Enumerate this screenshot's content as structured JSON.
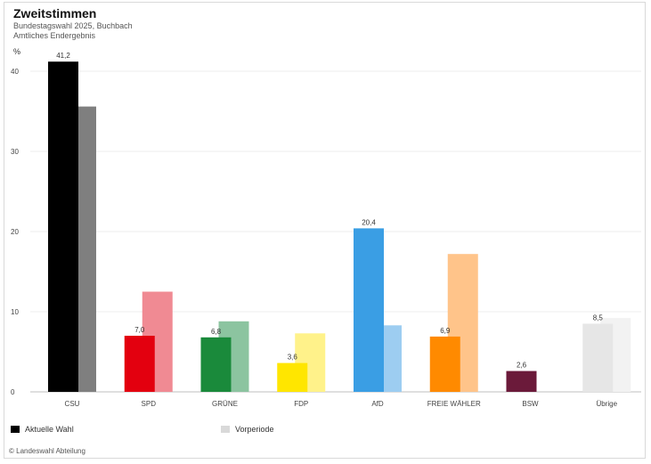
{
  "header": {
    "title": "Zweitstimmen",
    "subtitle": "Bundestagswahl 2025, Buchbach",
    "subtitle2": "Amtliches Endergebnis",
    "y_unit": "%"
  },
  "legend": {
    "current_label": "Aktuelle Wahl",
    "previous_label": "Vorperiode"
  },
  "source": "© Landeswahl Abteilung",
  "colors": {
    "CSU": [
      "#000000",
      "#7f7f7f"
    ],
    "SPD": [
      "#e3000f",
      "#f08a93"
    ],
    "GRÜNE": [
      "#1a8a3b",
      "#8cc4a0"
    ],
    "FDP": [
      "#ffe600",
      "#fff28a"
    ],
    "AfD": [
      "#3a9ee4",
      "#9dcdf1"
    ],
    "FREIE WÄHLER": [
      "#ff8a00",
      "#ffc48a"
    ],
    "BSW": [
      "#6b1a3a",
      "#b58aa0"
    ],
    "Übrige": [
      "#e6e6e6",
      "#f2f2f2"
    ]
  },
  "chart_data": {
    "type": "bar",
    "title": "Zweitstimmen",
    "categories": [
      "CSU",
      "SPD",
      "GRÜNE",
      "FDP",
      "AfD",
      "FREIE WÄHLER",
      "BSW",
      "Übrige"
    ],
    "series": [
      {
        "name": "Aktuelle Wahl",
        "values": [
          41.2,
          7.0,
          6.8,
          3.6,
          20.4,
          6.9,
          2.6,
          8.5
        ]
      },
      {
        "name": "Vorperiode",
        "values": [
          35.6,
          12.5,
          8.8,
          7.3,
          8.3,
          17.2,
          null,
          9.2
        ]
      }
    ],
    "data_labels": [
      "41,2",
      "7,0",
      "6,8",
      "3,6",
      "20,4",
      "6,9",
      "2,6",
      "8,5"
    ],
    "ylim": [
      0,
      42
    ],
    "yticks": [
      0,
      10,
      20,
      30,
      40
    ],
    "ytick_labels": [
      "0",
      "10",
      "20",
      "30",
      "40"
    ],
    "grid": true,
    "legend_position": "bottom-left"
  }
}
